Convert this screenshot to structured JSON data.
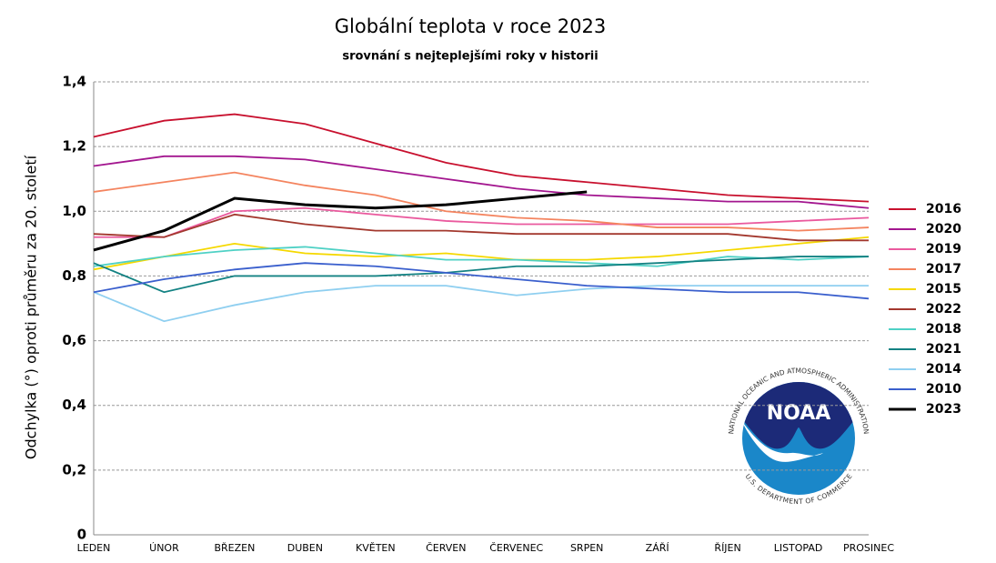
{
  "chart_data": {
    "type": "line",
    "title": "Globální teplota v roce 2023",
    "subtitle": "srovnání s nejteplejšími roky v historii",
    "y_label": "Odchylka (°) oproti průměru za 20. století",
    "categories": [
      "LEDEN",
      "ÚNOR",
      "BŘEZEN",
      "DUBEN",
      "KVĚTEN",
      "ČERVEN",
      "ČERVENEC",
      "SRPEN",
      "ZÁŘÍ",
      "ŘÍJEN",
      "LISTOPAD",
      "PROSINEC"
    ],
    "ylim": [
      0,
      1.4
    ],
    "yticks": [
      0,
      {
        "value": 0.2,
        "label": "0,2"
      },
      {
        "value": 0.4,
        "label": "0,4"
      },
      {
        "value": 0.6,
        "label": "0,6"
      },
      {
        "value": 0.8,
        "label": "0,8"
      },
      {
        "value": 1.0,
        "label": "1,0"
      },
      {
        "value": 1.2,
        "label": "1,2"
      },
      {
        "value": 1.4,
        "label": "1,4"
      }
    ],
    "grid": true,
    "legend": "right",
    "series": [
      {
        "name": "2016",
        "color": "#c8102e",
        "values": [
          1.23,
          1.28,
          1.3,
          1.27,
          1.21,
          1.15,
          1.11,
          1.09,
          1.07,
          1.05,
          1.04,
          1.03
        ]
      },
      {
        "name": "2020",
        "color": "#a3168f",
        "values": [
          1.14,
          1.17,
          1.17,
          1.16,
          1.13,
          1.1,
          1.07,
          1.05,
          1.04,
          1.03,
          1.03,
          1.01
        ]
      },
      {
        "name": "2019",
        "color": "#ea5a9e",
        "values": [
          0.92,
          0.92,
          1.0,
          1.01,
          0.99,
          0.97,
          0.96,
          0.96,
          0.96,
          0.96,
          0.97,
          0.98
        ]
      },
      {
        "name": "2017",
        "color": "#f4845f",
        "values": [
          1.06,
          1.09,
          1.12,
          1.08,
          1.05,
          1.0,
          0.98,
          0.97,
          0.95,
          0.95,
          0.94,
          0.95
        ]
      },
      {
        "name": "2015",
        "color": "#f5d800",
        "values": [
          0.82,
          0.86,
          0.9,
          0.87,
          0.86,
          0.87,
          0.85,
          0.85,
          0.86,
          0.88,
          0.9,
          0.92
        ]
      },
      {
        "name": "2022",
        "color": "#a3382e",
        "values": [
          0.93,
          0.92,
          0.99,
          0.96,
          0.94,
          0.94,
          0.93,
          0.93,
          0.93,
          0.93,
          0.91,
          0.91
        ]
      },
      {
        "name": "2018",
        "color": "#4fd1c5",
        "values": [
          0.83,
          0.86,
          0.88,
          0.89,
          0.87,
          0.85,
          0.85,
          0.84,
          0.83,
          0.86,
          0.85,
          0.86
        ]
      },
      {
        "name": "2021",
        "color": "#138283",
        "values": [
          0.84,
          0.75,
          0.8,
          0.8,
          0.8,
          0.81,
          0.83,
          0.83,
          0.84,
          0.85,
          0.86,
          0.86
        ]
      },
      {
        "name": "2014",
        "color": "#8fcff0",
        "values": [
          0.75,
          0.66,
          0.71,
          0.75,
          0.77,
          0.77,
          0.74,
          0.76,
          0.77,
          0.77,
          0.77,
          0.77
        ]
      },
      {
        "name": "2010",
        "color": "#3a5fcd",
        "values": [
          0.75,
          0.79,
          0.82,
          0.84,
          0.83,
          0.81,
          0.79,
          0.77,
          0.76,
          0.75,
          0.75,
          0.73
        ]
      },
      {
        "name": "2023",
        "color": "#000000",
        "values": [
          0.88,
          0.94,
          1.04,
          1.02,
          1.01,
          1.02,
          1.04,
          1.06,
          null,
          null,
          null,
          null
        ]
      }
    ],
    "logo": {
      "abbr": "NOAA",
      "top": "NATIONAL OCEANIC AND ATMOSPHERIC ADMINISTRATION",
      "bottom": "U.S. DEPARTMENT OF COMMERCE"
    }
  }
}
